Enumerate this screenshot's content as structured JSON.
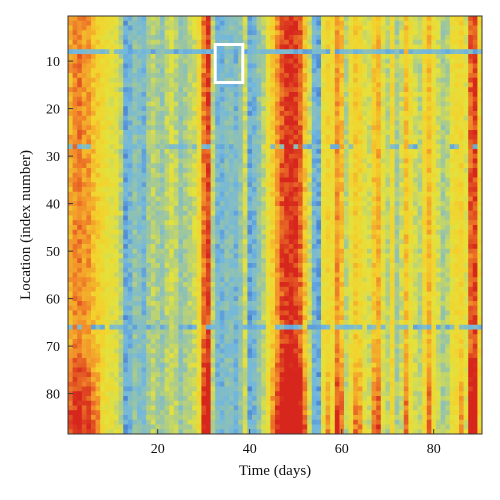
{
  "chart_data": {
    "type": "heatmap",
    "title": "",
    "xlabel": "Time (days)",
    "ylabel": "Location (index number)",
    "x_range": [
      1,
      90
    ],
    "y_range": [
      1,
      88
    ],
    "y_direction": "top-to-bottom",
    "x_ticks": [
      20,
      40,
      60,
      80
    ],
    "y_ticks": [
      10,
      20,
      30,
      40,
      50,
      60,
      70,
      80
    ],
    "colorbar": false,
    "colormap": [
      "#2e5ecc",
      "#70b6e0",
      "#9fc79c",
      "#e3e23d",
      "#f4d12c",
      "#f28b2a",
      "#d6261d"
    ],
    "column_profile": [
      0.76,
      0.82,
      0.85,
      0.8,
      0.79,
      0.7,
      0.65,
      0.6,
      0.55,
      0.52,
      0.5,
      0.4,
      0.15,
      0.2,
      0.3,
      0.25,
      0.2,
      0.35,
      0.4,
      0.35,
      0.3,
      0.4,
      0.45,
      0.4,
      0.3,
      0.35,
      0.4,
      0.45,
      0.6,
      0.85,
      0.95,
      0.4,
      0.2,
      0.2,
      0.25,
      0.25,
      0.2,
      0.3,
      0.45,
      0.15,
      0.2,
      0.3,
      0.4,
      0.55,
      0.65,
      0.8,
      0.92,
      0.98,
      0.99,
      0.97,
      0.9,
      0.7,
      0.45,
      0.2,
      0.15,
      0.55,
      0.62,
      0.58,
      0.8,
      0.7,
      0.4,
      0.55,
      0.66,
      0.62,
      0.5,
      0.45,
      0.68,
      0.75,
      0.5,
      0.4,
      0.6,
      0.35,
      0.45,
      0.7,
      0.55,
      0.45,
      0.4,
      0.6,
      0.72,
      0.55,
      0.45,
      0.35,
      0.4,
      0.55,
      0.6,
      0.62,
      0.5,
      0.9,
      0.95,
      0.6
    ],
    "blue_rows": [
      {
        "row": 8,
        "strength": 0.9
      },
      {
        "row": 28,
        "strength": 0.45
      },
      {
        "row": 66,
        "strength": 0.8
      }
    ],
    "bottom_intensification": {
      "from_row": 68,
      "amount": 0.22
    },
    "highlight_box": {
      "x_from": 33,
      "x_to": 38,
      "y_from": 7,
      "y_to": 14
    }
  }
}
